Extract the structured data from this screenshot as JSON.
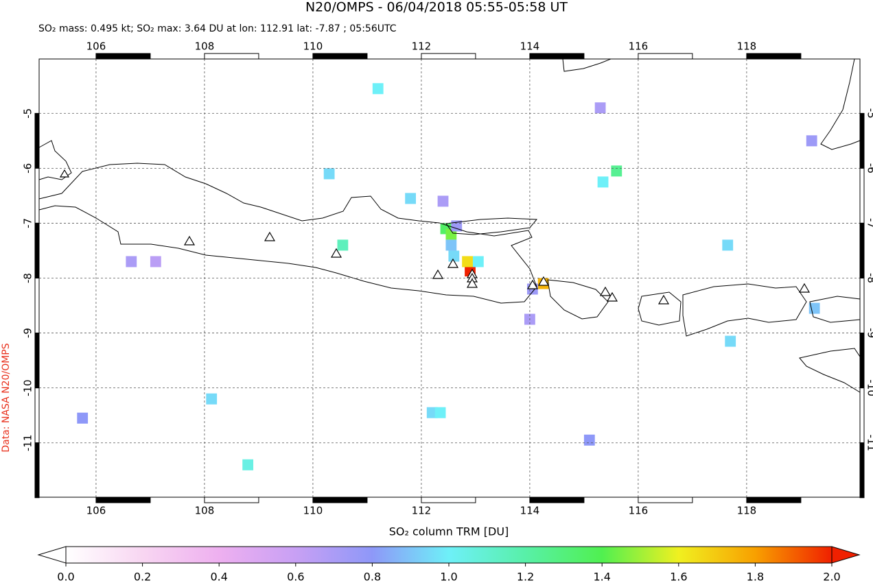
{
  "chart_data": {
    "type": "map",
    "title": "N20/OMPS - 06/04/2018 05:55-05:58 UT",
    "subtitle": "SO₂ mass: 0.495 kt; SO₂ max: 3.64 DU at lon: 112.91 lat: -7.87 ; 05:56UTC",
    "colorbar_label": "SO₂ column TRM [DU]",
    "credit": "Data: NASA N20/OMPS",
    "xlim": [
      104.95,
      120.09
    ],
    "ylim": [
      -11.99,
      -4.01
    ],
    "xticks": [
      106,
      108,
      110,
      112,
      114,
      116,
      118
    ],
    "yticks": [
      -5,
      -6,
      -7,
      -8,
      -9,
      -10,
      -11
    ],
    "grid": true,
    "clim": [
      0,
      2
    ],
    "cticks": [
      {
        "value": 0,
        "label": "0.0"
      },
      {
        "value": 0.2,
        "label": "0.2"
      },
      {
        "value": 0.4,
        "label": "0.4"
      },
      {
        "value": 0.6,
        "label": "0.6"
      },
      {
        "value": 0.8,
        "label": "0.8"
      },
      {
        "value": 1,
        "label": "1.0"
      },
      {
        "value": 1.2,
        "label": "1.2"
      },
      {
        "value": 1.4,
        "label": "1.4"
      },
      {
        "value": 1.6,
        "label": "1.6"
      },
      {
        "value": 1.8,
        "label": "1.8"
      },
      {
        "value": 2,
        "label": "2.0"
      }
    ],
    "colormap": [
      "#ffffff",
      "#f8d6f2",
      "#eeb0f0",
      "#c8a0f4",
      "#8e98f8",
      "#6ef0f8",
      "#58f0a8",
      "#50f050",
      "#f0f020",
      "#f8a000",
      "#f02000"
    ],
    "x": [
      112.9,
      112.85,
      113.05,
      112.45,
      112.55,
      112.55,
      112.6,
      112.65,
      112.4,
      114.25,
      114.05,
      114.0,
      115.6,
      115.35,
      112.2,
      112.35,
      105.75,
      108.13,
      108.8,
      110.3,
      110.55,
      111.2,
      111.8,
      117.65,
      117.7,
      119.25,
      115.1,
      106.65,
      107.1,
      115.3,
      119.2
    ],
    "y": [
      -7.87,
      -7.7,
      -7.7,
      -7.1,
      -7.2,
      -7.4,
      -7.6,
      -7.05,
      -6.6,
      -8.1,
      -8.2,
      -8.75,
      -6.05,
      -6.25,
      -10.45,
      -10.45,
      -10.55,
      -10.2,
      -11.4,
      -6.1,
      -7.4,
      -4.55,
      -6.55,
      -7.4,
      -9.15,
      -8.55,
      -10.95,
      -7.7,
      -7.7,
      -4.9,
      -5.5
    ],
    "values": [
      2.0,
      1.65,
      1.0,
      1.35,
      1.45,
      0.9,
      0.95,
      0.75,
      0.7,
      1.75,
      0.75,
      0.7,
      1.25,
      1.0,
      0.95,
      1.0,
      0.8,
      0.95,
      1.05,
      0.95,
      1.15,
      1.0,
      0.95,
      0.95,
      0.95,
      0.9,
      0.8,
      0.7,
      0.65,
      0.7,
      0.75
    ]
  }
}
